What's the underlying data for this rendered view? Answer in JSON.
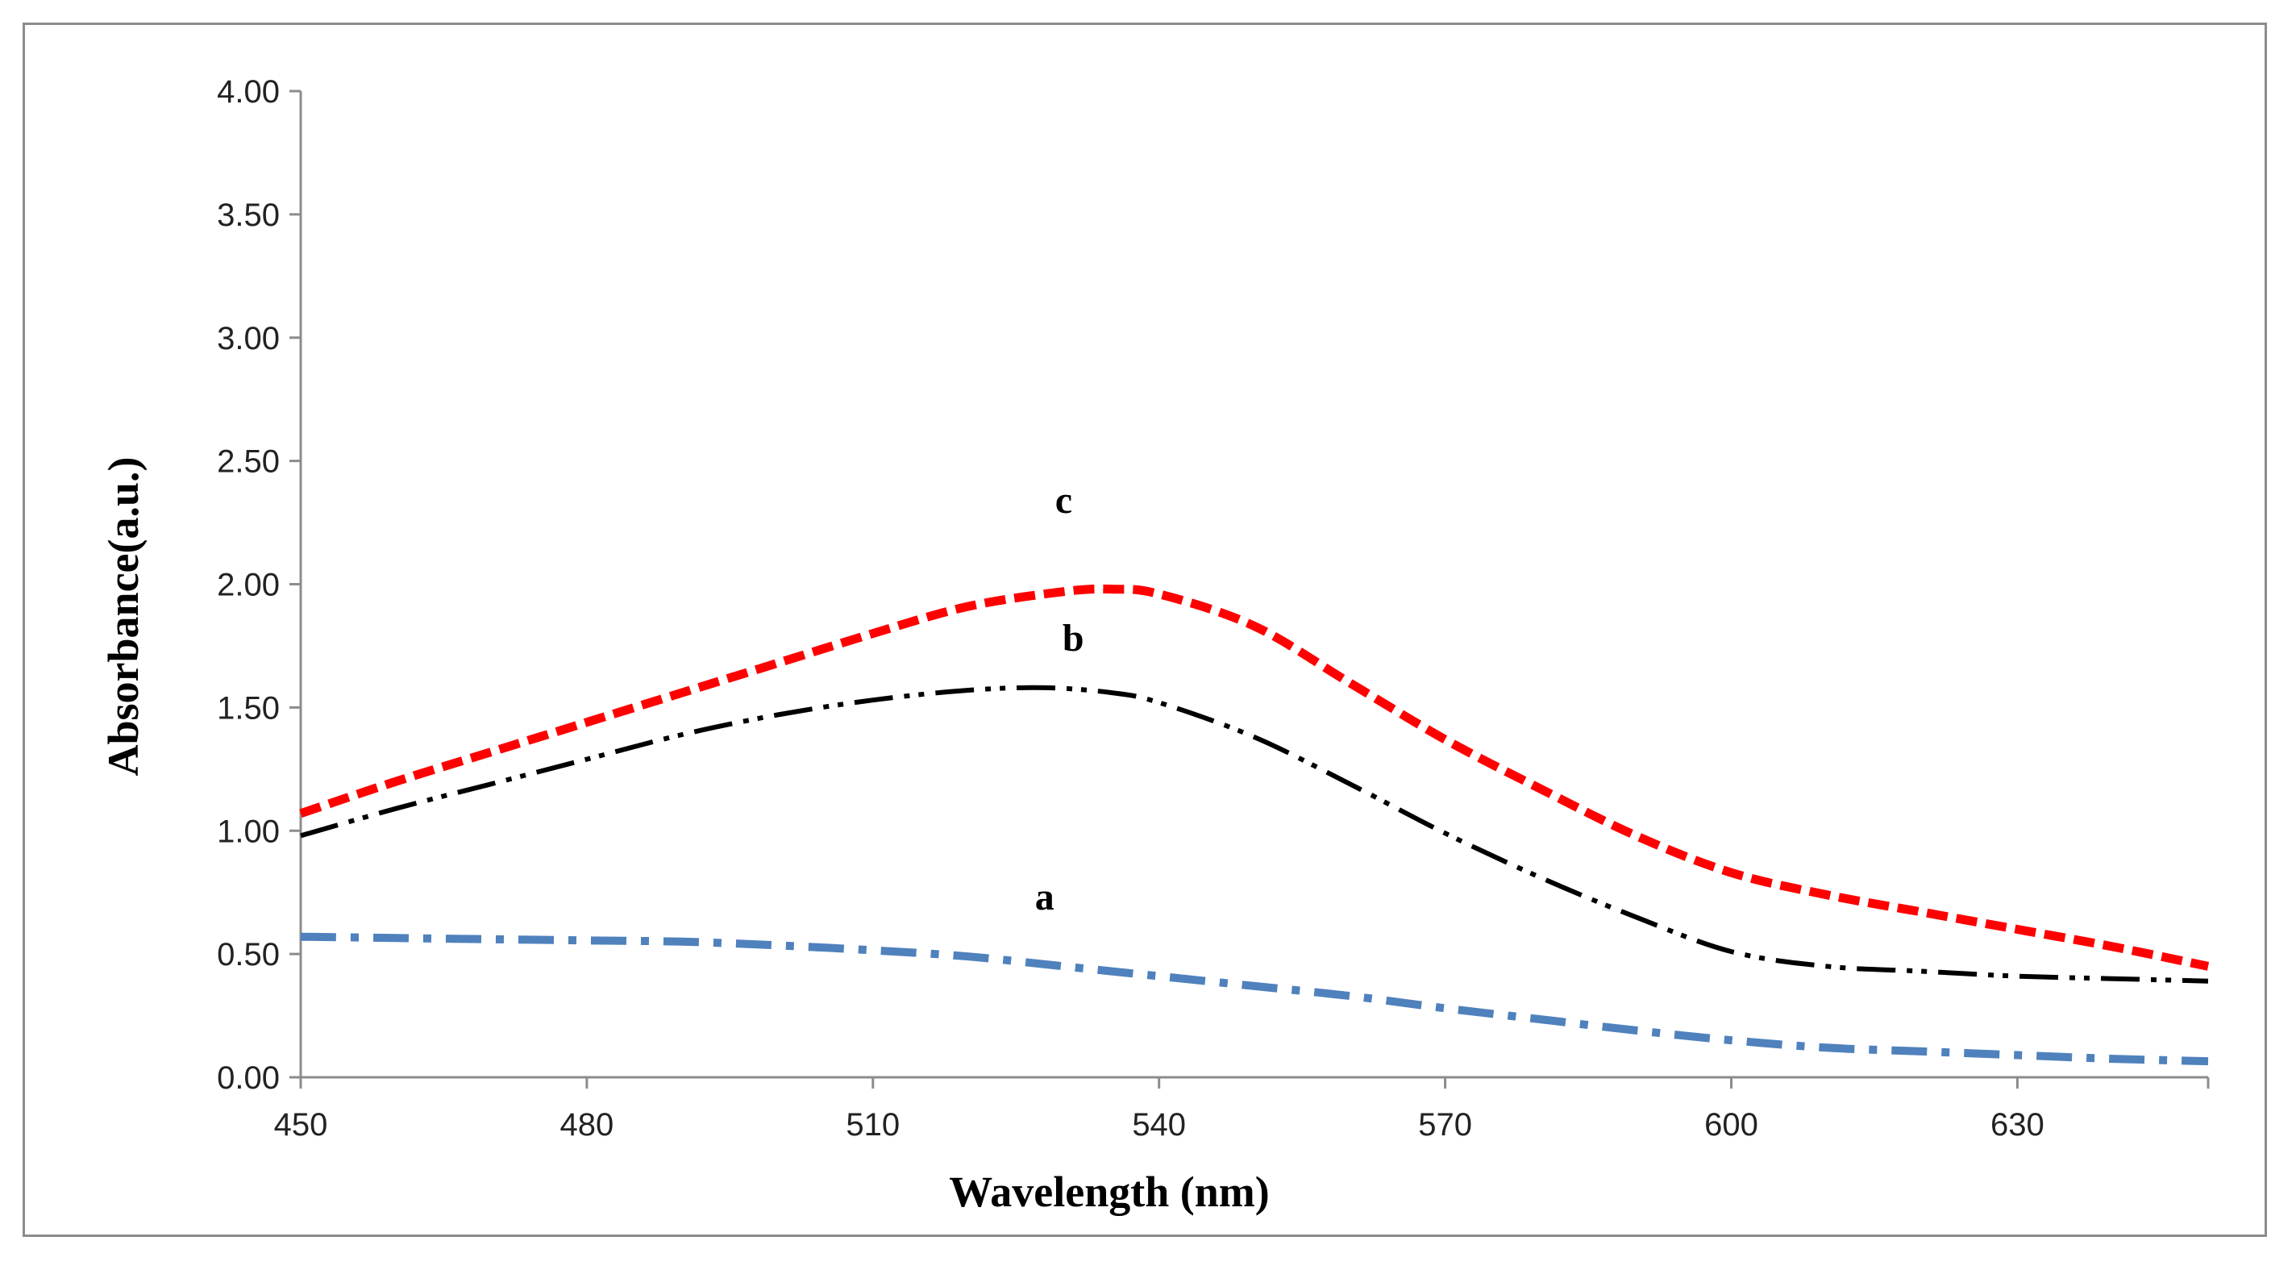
{
  "chart_data": {
    "type": "line",
    "title": "",
    "xlabel": "Wavelength (nm)",
    "ylabel": "Absorbance(a.u.)",
    "xlim": [
      450,
      650
    ],
    "ylim": [
      0,
      4
    ],
    "x_ticks": [
      450,
      480,
      510,
      540,
      570,
      600,
      630
    ],
    "x_tick_labels": [
      "450",
      "480",
      "510",
      "540",
      "570",
      "600",
      "630"
    ],
    "y_ticks": [
      0,
      0.5,
      1,
      1.5,
      2,
      2.5,
      3,
      3.5,
      4
    ],
    "y_tick_labels": [
      "0.00",
      "0.50",
      "1.00",
      "1.50",
      "2.00",
      "2.50",
      "3.00",
      "3.50",
      "4.00"
    ],
    "grid": false,
    "series": [
      {
        "name": "a",
        "label": "a",
        "color": "#4f81bd",
        "style": "dash-dot",
        "x": [
          450,
          460,
          470,
          480,
          490,
          500,
          510,
          520,
          530,
          540,
          550,
          560,
          570,
          580,
          590,
          600,
          610,
          620,
          630,
          640,
          650
        ],
        "y": [
          0.57,
          0.565,
          0.56,
          0.555,
          0.55,
          0.535,
          0.515,
          0.49,
          0.45,
          0.41,
          0.37,
          0.33,
          0.28,
          0.235,
          0.19,
          0.15,
          0.12,
          0.105,
          0.09,
          0.075,
          0.065
        ]
      },
      {
        "name": "b",
        "label": "b",
        "color": "#000000",
        "style": "dash-dot-dot",
        "x": [
          450,
          460,
          470,
          480,
          490,
          500,
          510,
          520,
          528,
          535,
          540,
          550,
          560,
          570,
          580,
          590,
          600,
          610,
          620,
          630,
          640,
          650
        ],
        "y": [
          0.98,
          1.09,
          1.19,
          1.29,
          1.39,
          1.47,
          1.53,
          1.57,
          1.58,
          1.56,
          1.52,
          1.38,
          1.19,
          0.99,
          0.81,
          0.65,
          0.51,
          0.45,
          0.43,
          0.41,
          0.4,
          0.39
        ]
      },
      {
        "name": "c",
        "label": "c",
        "color": "#ff0000",
        "style": "dashed",
        "x": [
          450,
          460,
          470,
          480,
          490,
          500,
          510,
          520,
          530,
          535,
          540,
          550,
          560,
          570,
          580,
          590,
          600,
          610,
          620,
          630,
          640,
          650
        ],
        "y": [
          1.07,
          1.2,
          1.32,
          1.44,
          1.56,
          1.68,
          1.8,
          1.91,
          1.97,
          1.98,
          1.96,
          1.83,
          1.6,
          1.37,
          1.17,
          0.98,
          0.83,
          0.74,
          0.67,
          0.6,
          0.53,
          0.45
        ]
      }
    ],
    "annotations": [
      {
        "text": "a",
        "x": 528,
        "y": 0.68
      },
      {
        "text": "b",
        "x": 531,
        "y": 1.73
      },
      {
        "text": "c",
        "x": 530,
        "y": 2.29
      }
    ]
  }
}
